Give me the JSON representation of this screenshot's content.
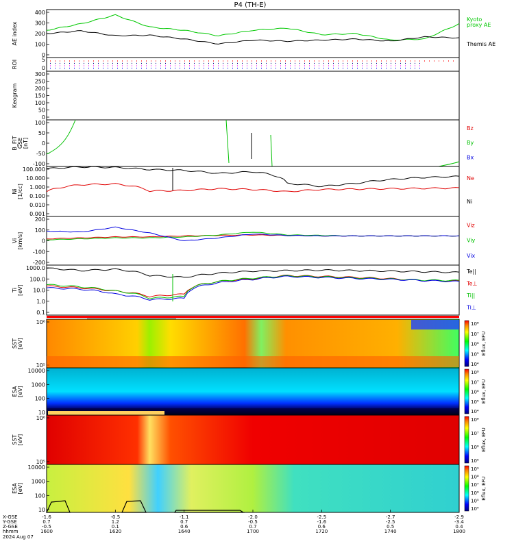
{
  "title": "P4 (TH-E)",
  "chart_data": [
    {
      "type": "line",
      "panel": "ae",
      "ylabel": "AE index",
      "ylim": [
        -20,
        420
      ],
      "yticks": [
        "400",
        "300",
        "200",
        "100",
        "0"
      ],
      "x": [
        "16:00",
        "16:10",
        "16:20",
        "16:30",
        "16:40",
        "16:50",
        "17:00",
        "17:10",
        "17:20",
        "17:30",
        "17:40",
        "17:50",
        "18:00"
      ],
      "series": [
        {
          "name": "Kyoto proxy AE",
          "color": "#00c800",
          "values": [
            230,
            290,
            370,
            260,
            230,
            180,
            230,
            250,
            190,
            200,
            140,
            150,
            290
          ]
        },
        {
          "name": "Themis AE",
          "color": "#000000",
          "values": [
            200,
            225,
            180,
            185,
            150,
            105,
            140,
            130,
            140,
            150,
            130,
            170,
            160
          ]
        }
      ],
      "legend": [
        "Kyoto",
        "proxy AE",
        "Themis AE"
      ]
    },
    {
      "type": "scatter",
      "panel": "roi",
      "ylabel": "ROI",
      "yticks": [
        "0",
        "5"
      ],
      "rows": [
        {
          "color": "#ff0000"
        },
        {
          "color": "#000080"
        },
        {
          "color": "#ff00ff"
        },
        {
          "color": "#0000ff"
        }
      ]
    },
    {
      "type": "heatmap",
      "panel": "keogram",
      "ylabel": "Keogram",
      "ylim": [
        0,
        300
      ],
      "yticks": [
        "300",
        "250",
        "200",
        "150",
        "100",
        "50",
        "0"
      ]
    },
    {
      "type": "line",
      "panel": "bfield",
      "ylabel": [
        "B_FIT",
        "GSE",
        "[nT]"
      ],
      "ylim": [
        -100,
        100
      ],
      "yticks": [
        "100",
        "50",
        "0",
        "-50",
        "-100"
      ],
      "series": [
        {
          "name": "Bz",
          "color": "#e00000"
        },
        {
          "name": "By",
          "color": "#00c000"
        },
        {
          "name": "Bx",
          "color": "#0000e0"
        }
      ]
    },
    {
      "type": "line",
      "panel": "density",
      "ylabel": [
        "Ni",
        "[1/cc]"
      ],
      "ylog": true,
      "ylim": [
        0.001,
        100
      ],
      "yticks": [
        "100.000",
        "10.000",
        "1.000",
        "0.100",
        "0.010",
        "0.001"
      ],
      "series": [
        {
          "name": "Ne",
          "color": "#e00000",
          "values": [
            0.3,
            1.5,
            1.8,
            0.35,
            0.4,
            0.6,
            0.5,
            0.3,
            0.5,
            0.55,
            0.6,
            0.65,
            0.7
          ]
        },
        {
          "name": "Ni",
          "color": "#000000",
          "values": [
            60,
            90,
            80,
            50,
            40,
            20,
            30,
            2,
            1,
            2,
            5,
            8,
            10
          ]
        }
      ]
    },
    {
      "type": "line",
      "panel": "velocity",
      "ylabel": [
        "Vi",
        "[km/s]"
      ],
      "ylim": [
        -300,
        200
      ],
      "yticks": [
        "200",
        "100",
        "0",
        "-100",
        "-200"
      ],
      "series": [
        {
          "name": "Viz",
          "color": "#e00000",
          "values": [
            -30,
            -20,
            -10,
            -10,
            0,
            5,
            10,
            5,
            0,
            0,
            0,
            0,
            0
          ]
        },
        {
          "name": "Viy",
          "color": "#00c000",
          "values": [
            -40,
            -30,
            -20,
            -20,
            -10,
            10,
            40,
            10,
            5,
            0,
            0,
            0,
            0
          ]
        },
        {
          "name": "Vix",
          "color": "#0000e0",
          "values": [
            50,
            40,
            90,
            30,
            -50,
            -20,
            20,
            5,
            0,
            0,
            0,
            0,
            0
          ]
        }
      ]
    },
    {
      "type": "line",
      "panel": "temperature",
      "ylabel": [
        "Ti",
        "[eV]"
      ],
      "ylog": true,
      "ylim": [
        0.05,
        3000
      ],
      "yticks": [
        "1000.0",
        "100.0",
        "10.0",
        "1.0",
        "0.1"
      ],
      "series": [
        {
          "name": "Te||",
          "color": "#000000",
          "values": [
            1500,
            900,
            1200,
            300,
            200,
            500,
            800,
            900,
            1000,
            900,
            800,
            700,
            600
          ]
        },
        {
          "name": "Te⊥",
          "color": "#e00000",
          "values": [
            30,
            20,
            10,
            3,
            5,
            80,
            150,
            300,
            250,
            200,
            150,
            100,
            90
          ]
        },
        {
          "name": "Ti||",
          "color": "#00c000",
          "values": [
            40,
            25,
            10,
            2,
            3,
            80,
            170,
            280,
            230,
            180,
            140,
            110,
            100
          ]
        },
        {
          "name": "Ti⊥",
          "color": "#0000e0",
          "values": [
            20,
            15,
            5,
            1.5,
            2,
            60,
            130,
            250,
            200,
            160,
            130,
            100,
            80
          ]
        }
      ]
    },
    {
      "type": "heatmap",
      "panel": "sst-omni-ion",
      "ylabel": [
        "SST",
        "[eV]"
      ],
      "yticks": [
        "10⁶",
        "10⁵"
      ],
      "colorbar": {
        "label": "Eflux, EFU",
        "ticks": [
          "10⁸",
          "10⁷",
          "10⁶",
          "10⁵",
          "10⁴"
        ]
      }
    },
    {
      "type": "heatmap",
      "panel": "esa-ion",
      "ylabel": [
        "ESA",
        "[eV]"
      ],
      "yticks": [
        "10000",
        "1000",
        "100",
        "10"
      ],
      "colorbar": {
        "label": "Eflux, EFU",
        "ticks": [
          "10⁸",
          "10⁷",
          "10⁶",
          "10⁵",
          "10⁴"
        ]
      }
    },
    {
      "type": "heatmap",
      "panel": "sst-elec",
      "ylabel": [
        "SST",
        "[eV]"
      ],
      "yticks": [
        "10⁶",
        "10⁵"
      ],
      "colorbar": {
        "label": "Eflux, EFU",
        "ticks": [
          "10⁸",
          "10⁷",
          "10⁶",
          "10⁵"
        ]
      }
    },
    {
      "type": "heatmap",
      "panel": "esa-elec",
      "ylabel": [
        "ESA",
        "[eV]"
      ],
      "yticks": [
        "10000",
        "1000",
        "100",
        "10"
      ],
      "colorbar": {
        "label": "Eflux, EFU",
        "ticks": [
          "10⁹",
          "10⁸",
          "10⁷",
          "10⁶",
          "10⁵",
          "10⁴"
        ]
      }
    }
  ],
  "xaxis": {
    "row_labels": [
      "X-GSE",
      "Y-GSE",
      "Z-GSE",
      "hhmm",
      "2024 Aug 07"
    ],
    "columns": [
      {
        "x": "-1.6",
        "y": "0.7",
        "z": "-0.5",
        "t": "1600"
      },
      {
        "x": "-0.5",
        "y": "1.2",
        "z": "0.1",
        "t": "1620"
      },
      {
        "x": "-1.1",
        "y": "0.7",
        "z": "0.6",
        "t": "1640"
      },
      {
        "x": "-2.0",
        "y": "-0.5",
        "z": "0.7",
        "t": "1700"
      },
      {
        "x": "-2.5",
        "y": "-1.6",
        "z": "0.6",
        "t": "1720"
      },
      {
        "x": "-2.7",
        "y": "-2.5",
        "z": "0.5",
        "t": "1740"
      },
      {
        "x": "-2.9",
        "y": "-3.4",
        "z": "0.4",
        "t": "1800"
      }
    ]
  },
  "colors": {
    "green": "#00c800",
    "red": "#e00000",
    "blue": "#0000e0"
  }
}
